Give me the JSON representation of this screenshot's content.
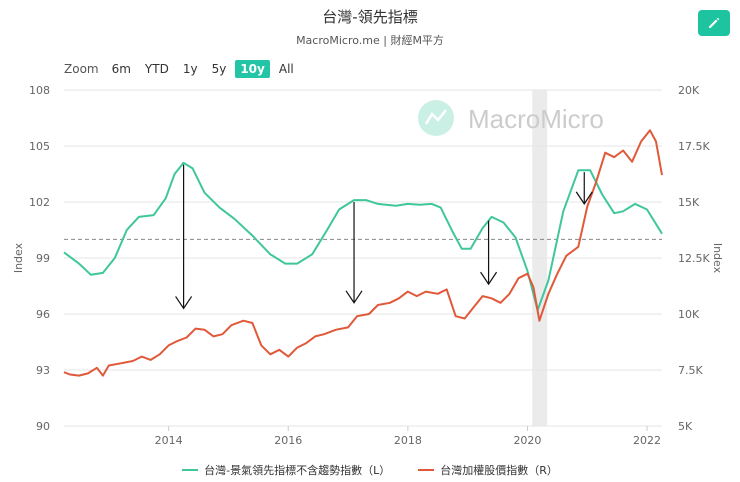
{
  "header": {
    "title": "台灣-領先指標",
    "subtitle": "MacroMicro.me | 財經M平方"
  },
  "zoom": {
    "label": "Zoom",
    "buttons": [
      "6m",
      "YTD",
      "1y",
      "5y",
      "10y",
      "All"
    ],
    "active": "10y"
  },
  "watermark": "MacroMicro",
  "colors": {
    "left_series": "#3fc69b",
    "right_series": "#e0593a",
    "accent": "#23c5a6",
    "shade": "#e6e6e6"
  },
  "chart_data": {
    "type": "line",
    "xlabel": "",
    "x_ticks": [
      "2014",
      "2016",
      "2018",
      "2020",
      "2022"
    ],
    "xlim": [
      2012.25,
      2022.25
    ],
    "y_left": {
      "label": "Index",
      "ylim": [
        90,
        108
      ],
      "ticks": [
        "90",
        "93",
        "96",
        "99",
        "102",
        "105",
        "108"
      ],
      "reference_line": 100
    },
    "y_right": {
      "label": "Index",
      "ylim": [
        5000,
        20000
      ],
      "ticks": [
        "5K",
        "7.5K",
        "10K",
        "12.5K",
        "15K",
        "17.5K",
        "20K"
      ]
    },
    "shaded_period": [
      2020.08,
      2020.33
    ],
    "annotations": [
      {
        "type": "down-arrow",
        "x": 2014.25,
        "from_left_y": 104.0,
        "to_left_y": 96.3
      },
      {
        "type": "down-arrow",
        "x": 2017.1,
        "from_left_y": 102.0,
        "to_left_y": 96.6
      },
      {
        "type": "down-arrow",
        "x": 2019.35,
        "from_left_y": 101.0,
        "to_left_y": 97.6
      },
      {
        "type": "down-arrow",
        "x": 2020.95,
        "from_left_y": 103.6,
        "to_left_y": 101.9
      }
    ],
    "series": [
      {
        "name": "台灣-景氣領先指標不含趨勢指數（L）",
        "axis": "left",
        "points": [
          [
            2012.25,
            99.3
          ],
          [
            2012.5,
            98.7
          ],
          [
            2012.7,
            98.1
          ],
          [
            2012.9,
            98.2
          ],
          [
            2013.1,
            99.0
          ],
          [
            2013.3,
            100.5
          ],
          [
            2013.5,
            101.2
          ],
          [
            2013.75,
            101.3
          ],
          [
            2013.95,
            102.2
          ],
          [
            2014.1,
            103.5
          ],
          [
            2014.25,
            104.1
          ],
          [
            2014.4,
            103.8
          ],
          [
            2014.6,
            102.5
          ],
          [
            2014.85,
            101.7
          ],
          [
            2015.1,
            101.1
          ],
          [
            2015.4,
            100.2
          ],
          [
            2015.7,
            99.2
          ],
          [
            2015.95,
            98.7
          ],
          [
            2016.15,
            98.7
          ],
          [
            2016.4,
            99.2
          ],
          [
            2016.65,
            100.5
          ],
          [
            2016.85,
            101.6
          ],
          [
            2017.1,
            102.1
          ],
          [
            2017.3,
            102.1
          ],
          [
            2017.5,
            101.9
          ],
          [
            2017.8,
            101.8
          ],
          [
            2018.0,
            101.9
          ],
          [
            2018.2,
            101.85
          ],
          [
            2018.4,
            101.9
          ],
          [
            2018.55,
            101.7
          ],
          [
            2018.75,
            100.4
          ],
          [
            2018.9,
            99.5
          ],
          [
            2019.05,
            99.5
          ],
          [
            2019.25,
            100.6
          ],
          [
            2019.4,
            101.2
          ],
          [
            2019.6,
            100.9
          ],
          [
            2019.8,
            100.1
          ],
          [
            2020.0,
            98.3
          ],
          [
            2020.17,
            96.2
          ],
          [
            2020.35,
            97.8
          ],
          [
            2020.6,
            101.5
          ],
          [
            2020.85,
            103.7
          ],
          [
            2021.05,
            103.7
          ],
          [
            2021.25,
            102.4
          ],
          [
            2021.45,
            101.4
          ],
          [
            2021.6,
            101.5
          ],
          [
            2021.8,
            101.9
          ],
          [
            2022.0,
            101.6
          ],
          [
            2022.25,
            100.3
          ]
        ]
      },
      {
        "name": "台灣加權股價指數（R）",
        "axis": "right",
        "points": [
          [
            2012.25,
            7400
          ],
          [
            2012.35,
            7300
          ],
          [
            2012.5,
            7250
          ],
          [
            2012.65,
            7350
          ],
          [
            2012.8,
            7600
          ],
          [
            2012.9,
            7250
          ],
          [
            2013.0,
            7700
          ],
          [
            2013.2,
            7800
          ],
          [
            2013.4,
            7900
          ],
          [
            2013.55,
            8100
          ],
          [
            2013.7,
            7950
          ],
          [
            2013.85,
            8200
          ],
          [
            2014.0,
            8600
          ],
          [
            2014.15,
            8800
          ],
          [
            2014.3,
            8950
          ],
          [
            2014.45,
            9350
          ],
          [
            2014.6,
            9300
          ],
          [
            2014.75,
            9000
          ],
          [
            2014.9,
            9100
          ],
          [
            2015.05,
            9500
          ],
          [
            2015.25,
            9700
          ],
          [
            2015.4,
            9600
          ],
          [
            2015.55,
            8600
          ],
          [
            2015.7,
            8200
          ],
          [
            2015.85,
            8400
          ],
          [
            2016.0,
            8100
          ],
          [
            2016.15,
            8500
          ],
          [
            2016.3,
            8700
          ],
          [
            2016.45,
            9000
          ],
          [
            2016.6,
            9100
          ],
          [
            2016.8,
            9300
          ],
          [
            2017.0,
            9400
          ],
          [
            2017.15,
            9900
          ],
          [
            2017.35,
            10000
          ],
          [
            2017.5,
            10400
          ],
          [
            2017.7,
            10500
          ],
          [
            2017.85,
            10700
          ],
          [
            2018.0,
            11000
          ],
          [
            2018.15,
            10800
          ],
          [
            2018.3,
            11000
          ],
          [
            2018.5,
            10900
          ],
          [
            2018.65,
            11100
          ],
          [
            2018.8,
            9900
          ],
          [
            2018.95,
            9800
          ],
          [
            2019.1,
            10300
          ],
          [
            2019.25,
            10800
          ],
          [
            2019.4,
            10700
          ],
          [
            2019.55,
            10500
          ],
          [
            2019.7,
            10900
          ],
          [
            2019.85,
            11600
          ],
          [
            2020.0,
            11800
          ],
          [
            2020.1,
            11200
          ],
          [
            2020.2,
            9700
          ],
          [
            2020.35,
            10900
          ],
          [
            2020.5,
            11800
          ],
          [
            2020.65,
            12600
          ],
          [
            2020.85,
            13000
          ],
          [
            2021.0,
            14800
          ],
          [
            2021.15,
            15900
          ],
          [
            2021.3,
            17200
          ],
          [
            2021.45,
            17000
          ],
          [
            2021.6,
            17300
          ],
          [
            2021.75,
            16800
          ],
          [
            2021.9,
            17700
          ],
          [
            2022.05,
            18200
          ],
          [
            2022.15,
            17700
          ],
          [
            2022.25,
            16200
          ]
        ]
      }
    ]
  }
}
